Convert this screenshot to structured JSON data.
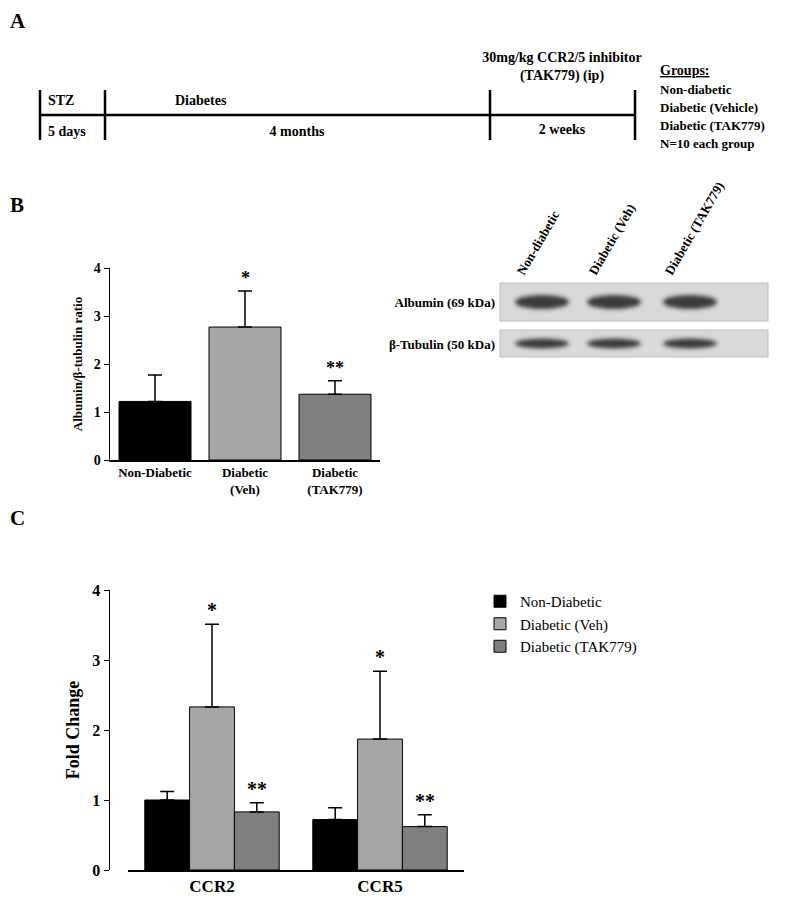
{
  "panel_labels": [
    "A",
    "B",
    "C"
  ],
  "timeline": {
    "segments": [
      {
        "above": "STZ",
        "below": "5 days"
      },
      {
        "above": "Diabetes",
        "below": "4 months"
      },
      {
        "above": "30mg/kg CCR2/5 inhibitor\n(TAK779) (ip)",
        "below": "2 weeks"
      }
    ],
    "groups_title": "Groups:",
    "groups": [
      "Non-diabetic",
      "Diabetic (Vehicle)",
      "Diabetic (TAK779)",
      "N=10 each group"
    ]
  },
  "blot": {
    "lanes": [
      "Non-diabetic",
      "Diabetic (Veh)",
      "Diabetic (TAK779)"
    ],
    "bands": [
      "Albumin (69 kDa)",
      "β-Tubulin (50 kDa)"
    ]
  },
  "chart_data": [
    {
      "type": "bar",
      "categories": [
        "Non-Diabetic",
        "Diabetic\n(Veh)",
        "Diabetic\n(TAK779)"
      ],
      "values": [
        1.22,
        2.77,
        1.37
      ],
      "errors": [
        0.55,
        0.75,
        0.28
      ],
      "colors": [
        "#000000",
        "#a6a6a6",
        "#7f7f7f"
      ],
      "ylabel": "Albumin/β-tubulin ratio",
      "ylim": [
        0,
        4
      ],
      "yticks": [
        0,
        1,
        2,
        3,
        4
      ],
      "grid": false,
      "annotations": [
        {
          "category": "Diabetic\n(Veh)",
          "text": "*"
        },
        {
          "category": "Diabetic\n(TAK779)",
          "text": "**"
        }
      ]
    },
    {
      "type": "bar",
      "categories": [
        "CCR2",
        "CCR5"
      ],
      "series": [
        {
          "name": "Non-Diabetic",
          "color": "#000000",
          "values": [
            1.0,
            0.72
          ],
          "errors": [
            0.12,
            0.17
          ]
        },
        {
          "name": "Diabetic (Veh)",
          "color": "#a6a6a6",
          "values": [
            2.33,
            1.87
          ],
          "errors": [
            1.18,
            0.97
          ]
        },
        {
          "name": "Diabetic (TAK779)",
          "color": "#7f7f7f",
          "values": [
            0.83,
            0.62
          ],
          "errors": [
            0.13,
            0.17
          ]
        }
      ],
      "ylabel": "Fold Change",
      "ylim": [
        0,
        4
      ],
      "yticks": [
        0,
        1,
        2,
        3,
        4
      ],
      "grid": false,
      "legend": "right",
      "annotations": [
        {
          "category": "CCR2",
          "series": "Diabetic (Veh)",
          "text": "*"
        },
        {
          "category": "CCR2",
          "series": "Diabetic (TAK779)",
          "text": "**"
        },
        {
          "category": "CCR5",
          "series": "Diabetic (Veh)",
          "text": "*"
        },
        {
          "category": "CCR5",
          "series": "Diabetic (TAK779)",
          "text": "**"
        }
      ]
    }
  ]
}
